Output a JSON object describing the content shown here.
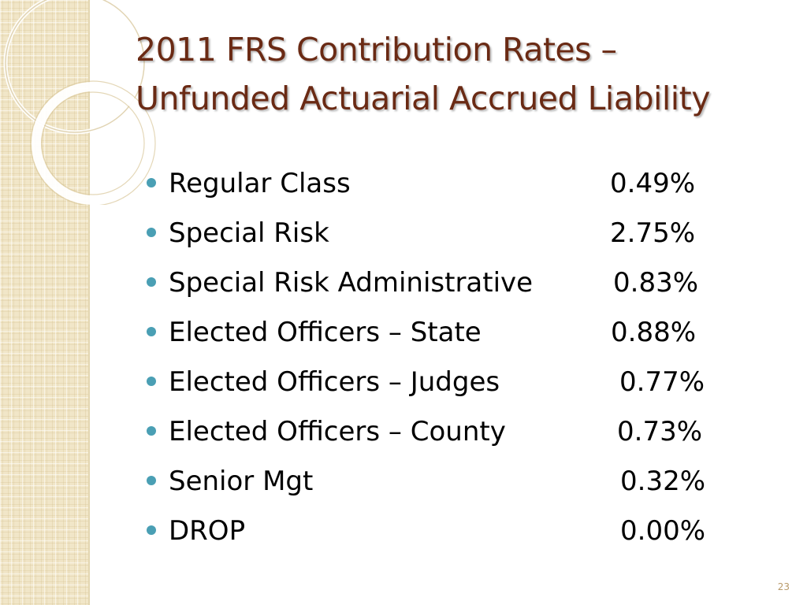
{
  "slide": {
    "title_line1": "2011 FRS Contribution Rates –",
    "title_line2": "Unfunded Actuarial Accrued Liability",
    "slide_number": "23",
    "colors": {
      "title": "#6a2a14",
      "bullet": "#4a9fb4",
      "side_strip": "#f1e6c8"
    }
  },
  "rates": [
    {
      "label": "Regular Class",
      "value": "0.49%"
    },
    {
      "label": "Special Risk",
      "value": "2.75%"
    },
    {
      "label": "Special Risk Administrative",
      "value": "0.83%"
    },
    {
      "label": "Elected Officers – State",
      "value": "0.88%"
    },
    {
      "label": "Elected Officers – Judges",
      "value": "0.77%"
    },
    {
      "label": "Elected Officers – County",
      "value": "0.73%"
    },
    {
      "label": "Senior Mgt",
      "value": "0.32%"
    },
    {
      "label": "DROP",
      "value": "0.00%"
    }
  ]
}
